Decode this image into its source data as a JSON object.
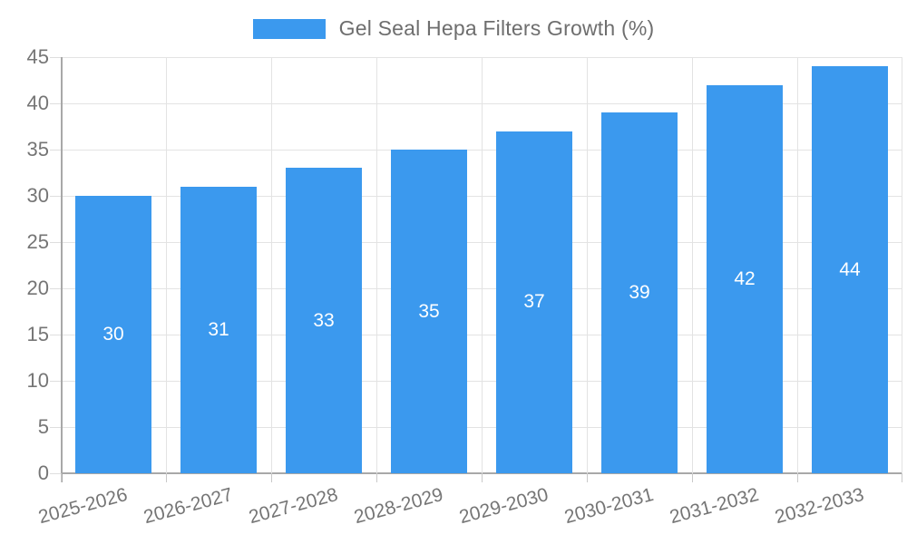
{
  "legend": {
    "label": "Gel Seal Hepa Filters Growth (%)",
    "swatch_color": "#3b99ee"
  },
  "chart_data": {
    "type": "bar",
    "title": "Gel Seal Hepa Filters Growth (%)",
    "categories": [
      "2025-2026",
      "2026-2027",
      "2027-2028",
      "2028-2029",
      "2029-2030",
      "2030-2031",
      "2031-2032",
      "2032-2033"
    ],
    "series": [
      {
        "name": "Gel Seal Hepa Filters Growth (%)",
        "values": [
          30,
          31,
          33,
          35,
          37,
          39,
          42,
          44
        ]
      }
    ],
    "bar_labels": [
      "30",
      "31",
      "33",
      "35",
      "37",
      "39",
      "42",
      "44"
    ],
    "xlabel": "",
    "ylabel": "",
    "ylim": [
      0,
      45
    ],
    "yticks": [
      0,
      5,
      10,
      15,
      20,
      25,
      30,
      35,
      40,
      45
    ],
    "grid": true,
    "legend_position": "top-center",
    "colors": {
      "bar": "#3b99ee",
      "bar_label": "#ffffff",
      "axis_text": "#757575",
      "gridline": "#e3e3e3",
      "axis_line": "#a8a8a8"
    }
  }
}
